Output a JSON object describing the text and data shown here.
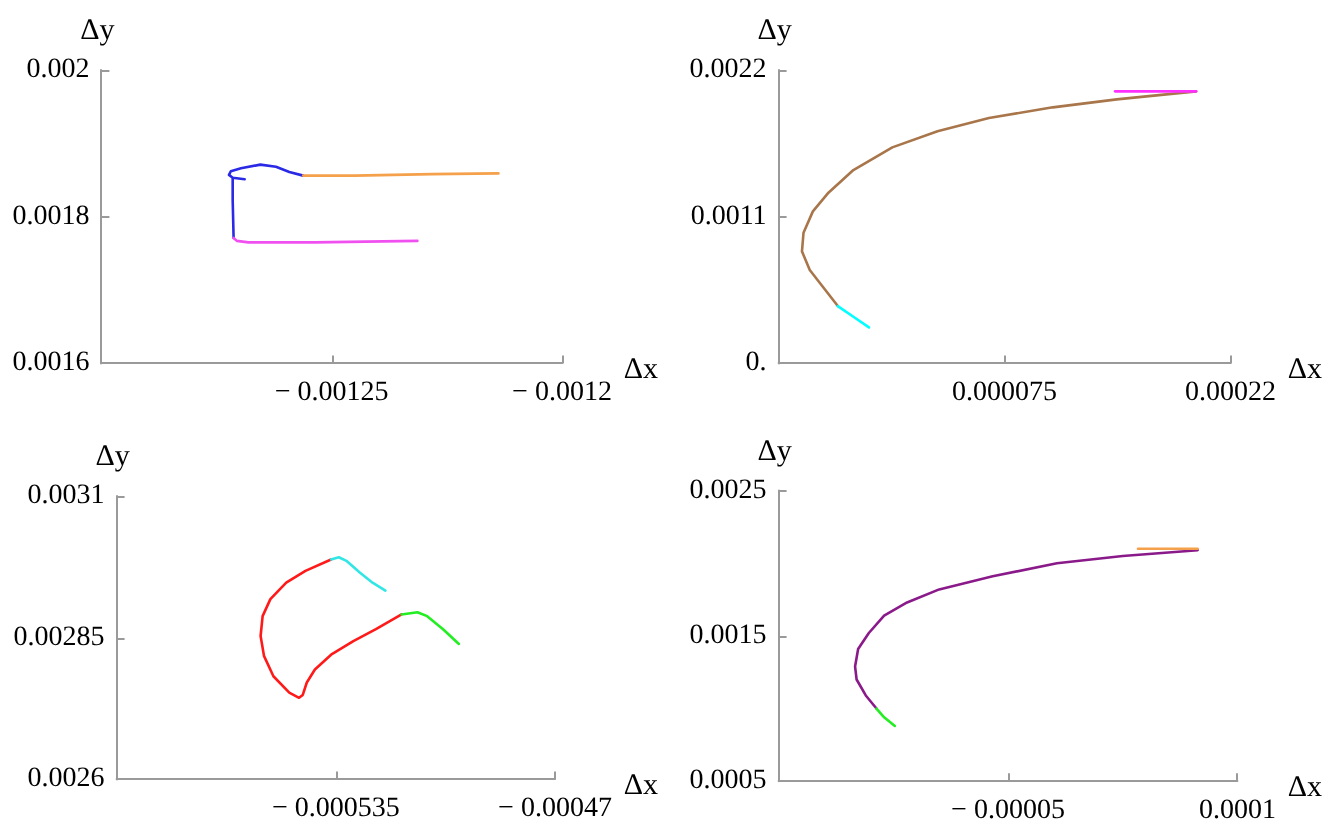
{
  "chart_data": [
    {
      "type": "line",
      "xlabel": "Δx",
      "ylabel": "Δy",
      "xlim": [
        -0.0013,
        -0.0012
      ],
      "xticks": [
        {
          "value": -0.00125,
          "label": "− 0.00125"
        },
        {
          "value": -0.0012,
          "label": "− 0.0012"
        }
      ],
      "ylim": [
        0.0016,
        0.002
      ],
      "yticks": [
        0.0016,
        0.0018,
        0.002
      ],
      "marker": "none",
      "series": [
        {
          "color": "#2a2ae6",
          "x": [
            -0.0012713,
            -0.0012715,
            -0.0012715,
            -0.0012689,
            -0.0012715,
            -0.0012723,
            -0.0012719,
            -0.0012697,
            -0.0012655,
            -0.0012621,
            -0.0012592,
            -0.0012562
          ],
          "values": [
            0.001771,
            0.001823,
            0.001853,
            0.001851,
            0.001853,
            0.001857,
            0.001862,
            0.001866,
            0.001871,
            0.001868,
            0.001861,
            0.001856
          ]
        },
        {
          "color": "#f5a04a",
          "x": [
            -0.0012562,
            -0.001245,
            -0.0012283,
            -0.0012138
          ],
          "values": [
            0.001856,
            0.001856,
            0.001858,
            0.001859
          ]
        },
        {
          "color": "#f050f0",
          "x": [
            -0.0012713,
            -0.0012706,
            -0.0012681,
            -0.0012537,
            -0.0012314
          ],
          "values": [
            0.001771,
            0.001767,
            0.001765,
            0.001765,
            0.001767
          ]
        }
      ]
    },
    {
      "type": "line",
      "xlabel": "Δx",
      "ylabel": "Δy",
      "xlim": [
        -7e-05,
        0.00022
      ],
      "xticks": [
        {
          "value": 7.5e-05,
          "label": "0.000075"
        },
        {
          "value": 0.00022,
          "label": "0.00022"
        }
      ],
      "ylim": [
        0,
        0.0022
      ],
      "yticks": [
        {
          "value": 0,
          "label": "0."
        },
        0.0011,
        0.0022
      ],
      "marker": "none",
      "series": [
        {
          "color": "#a8764a",
          "x": [
            -3.2e-05,
            -4.2e-05,
            -5e-05,
            -5.5e-05,
            -5.4e-05,
            -4.8e-05,
            -3.8e-05,
            -2.2e-05,
            3e-06,
            3.2e-05,
            6.5e-05,
            0.000106,
            0.000147,
            0.000198
          ],
          "values": [
            0.00043,
            0.00058,
            0.0007,
            0.00084,
            0.00098,
            0.00114,
            0.00128,
            0.00145,
            0.00162,
            0.00174,
            0.00184,
            0.00192,
            0.00198,
            0.00204
          ]
        },
        {
          "color": "#00ffff",
          "x": [
            -3.2e-05,
            -2.2e-05,
            -1.2e-05
          ],
          "values": [
            0.00043,
            0.00035,
            0.00027
          ]
        },
        {
          "color": "#ff30ff",
          "x": [
            0.000146,
            0.000198
          ],
          "values": [
            0.00204,
            0.00204
          ]
        }
      ]
    },
    {
      "type": "line",
      "xlabel": "Δx",
      "ylabel": "Δy",
      "xlim": [
        -0.0006,
        -0.00047
      ],
      "xticks": [
        {
          "value": -0.000535,
          "label": "− 0.000535"
        },
        {
          "value": -0.00047,
          "label": "− 0.00047"
        }
      ],
      "ylim": [
        0.0026,
        0.0031
      ],
      "yticks": [
        0.0026,
        0.00285,
        0.0031
      ],
      "marker": "none",
      "series": [
        {
          "color": "#ff1a1a",
          "x": [
            -0.0005364,
            -0.000544,
            -0.0005497,
            -0.0005544,
            -0.0005567,
            -0.0005573,
            -0.0005563,
            -0.0005535,
            -0.0005488,
            -0.0005459,
            -0.0005448,
            -0.0005436,
            -0.0005412,
            -0.0005364,
            -0.0005298,
            -0.0005231,
            -0.0005155
          ],
          "values": [
            0.002988,
            0.002968,
            0.002947,
            0.002918,
            0.002888,
            0.002853,
            0.002818,
            0.002782,
            0.002753,
            0.002744,
            0.002749,
            0.002771,
            0.002794,
            0.00282,
            0.002844,
            0.002865,
            0.002891
          ]
        },
        {
          "color": "#33e6e6",
          "x": [
            -0.0005364,
            -0.0005341,
            -0.0005317,
            -0.0005279,
            -0.0005241,
            -0.0005203
          ],
          "values": [
            0.002988,
            0.002992,
            0.002985,
            0.002965,
            0.002947,
            0.002933
          ]
        },
        {
          "color": "#22ee22",
          "x": [
            -0.0005155,
            -0.0005108,
            -0.0005079,
            -0.0005032,
            -0.0004985
          ],
          "values": [
            0.002891,
            0.002895,
            0.002888,
            0.002865,
            0.002839
          ]
        }
      ]
    },
    {
      "type": "line",
      "xlabel": "Δx",
      "ylabel": "Δy",
      "xlim": [
        -0.0002,
        0.0001
      ],
      "xticks": [
        {
          "value": -5e-05,
          "label": "− 0.00005"
        },
        0.0001
      ],
      "ylim": [
        0.0005,
        0.0025
      ],
      "yticks": [
        0.0005,
        0.0015,
        0.0025
      ],
      "marker": "none",
      "series": [
        {
          "color": "#8a1a8a",
          "x": [
            -0.000136,
            -0.000143,
            -0.000149,
            -0.00015,
            -0.000148,
            -0.000141,
            -0.000131,
            -0.000116,
            -9.5e-05,
            -6e-05,
            -1.8e-05,
            2.5e-05,
            7.4e-05
          ],
          "values": [
            0.001,
            0.00109,
            0.0012,
            0.00129,
            0.00141,
            0.00152,
            0.00164,
            0.00173,
            0.00182,
            0.00191,
            0.002,
            0.00205,
            0.00209
          ]
        },
        {
          "color": "#22ee22",
          "x": [
            -0.000136,
            -0.000131,
            -0.000124
          ],
          "values": [
            0.001,
            0.00094,
            0.00088
          ]
        },
        {
          "color": "#f5a04a",
          "x": [
            3.5e-05,
            7.4e-05
          ],
          "values": [
            0.0021,
            0.0021
          ]
        }
      ]
    }
  ]
}
